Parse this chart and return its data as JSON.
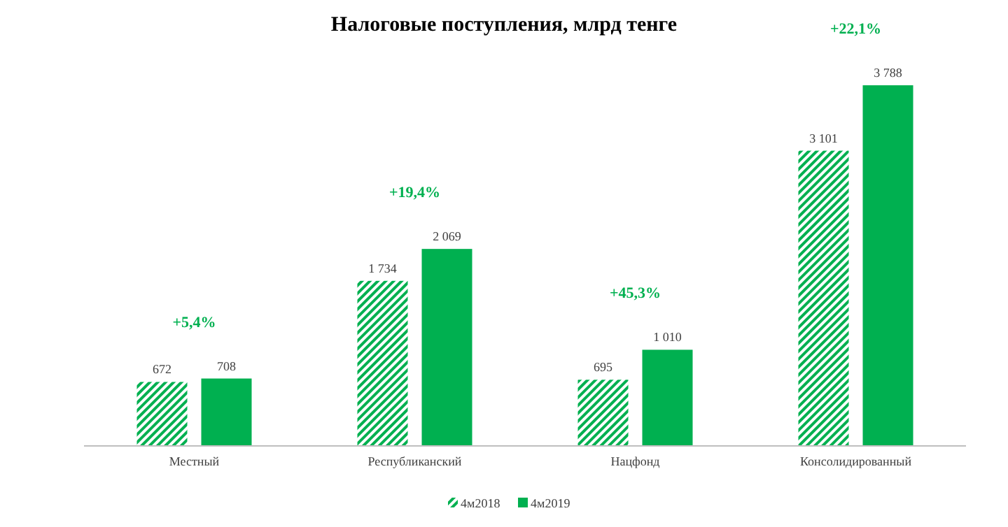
{
  "chart_data": {
    "type": "bar",
    "title": "Налоговые поступления, млрд тенге",
    "categories": [
      "Местный",
      "Республиканский",
      "Нацфонд",
      "Консолидированный"
    ],
    "series": [
      {
        "name": "4м2018",
        "color": "#00b050",
        "values": [
          672,
          1734,
          695,
          3101
        ],
        "value_labels": [
          "672",
          "1 734",
          "695",
          "3 101"
        ]
      },
      {
        "name": "4м2019",
        "color": "#00b050",
        "values": [
          708,
          2069,
          1010,
          3788
        ],
        "value_labels": [
          "708",
          "2 069",
          "1 010",
          "3 788"
        ]
      }
    ],
    "annotations": [
      "+5,4%",
      "+19,4%",
      "+45,3%",
      "+22,1%"
    ],
    "legend": "bottom"
  }
}
